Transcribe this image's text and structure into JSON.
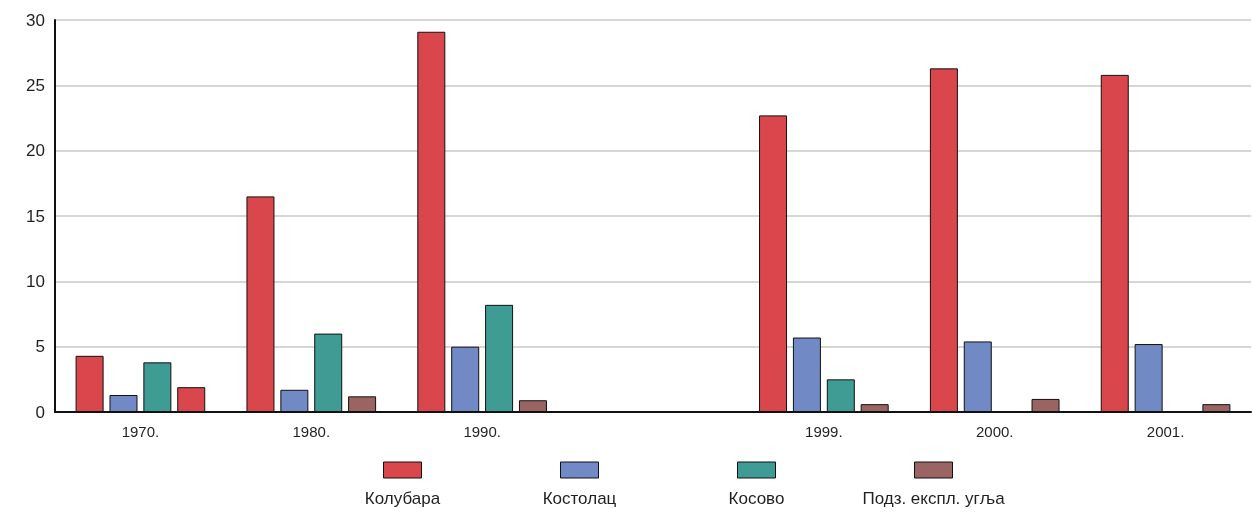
{
  "chart_data": {
    "type": "bar",
    "categories": [
      "1970.",
      "1980.",
      "1990.",
      null,
      "1999.",
      "2000.",
      "2001."
    ],
    "series": [
      {
        "name": "Колубара",
        "color": "#d9474c",
        "values": [
          4.3,
          16.5,
          29.1,
          null,
          22.7,
          26.3,
          25.8
        ]
      },
      {
        "name": "Костолац",
        "color": "#7189c4",
        "values": [
          1.3,
          1.7,
          5.0,
          null,
          5.7,
          5.4,
          5.2
        ]
      },
      {
        "name": "Косово",
        "color": "#3f9c95",
        "values": [
          3.8,
          6.0,
          8.2,
          null,
          2.5,
          null,
          null
        ]
      },
      {
        "name": "Подз. експл. угља",
        "color": "#9a6462",
        "colors": [
          "#d9474c",
          "#9a6462",
          "#9a6462",
          null,
          "#9a6462",
          "#9a6462",
          "#9a6462"
        ],
        "values": [
          1.9,
          1.2,
          0.9,
          null,
          0.6,
          1.0,
          0.6
        ]
      }
    ],
    "ylim": [
      0,
      30
    ],
    "yticks": [
      0,
      5,
      10,
      15,
      20,
      25,
      30
    ],
    "grid": "y",
    "legend": "bottom"
  }
}
